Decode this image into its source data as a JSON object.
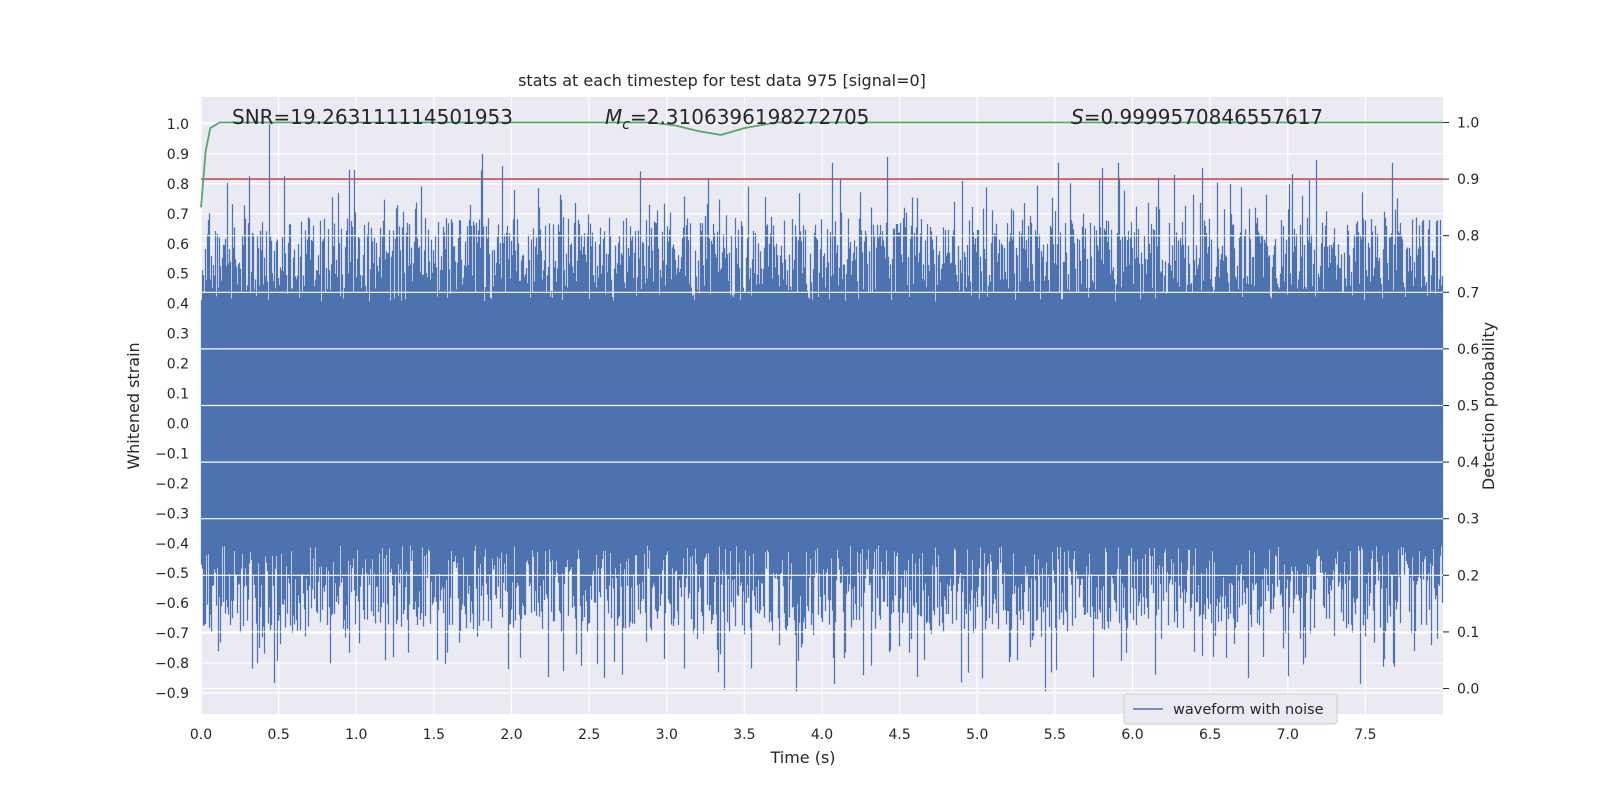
{
  "chart_data": {
    "type": "line",
    "title": "stats at each timestep for test data 975 [signal=0]",
    "xlabel": "Time (s)",
    "ylabel_left": "Whitened strain",
    "ylabel_right": "Detection probability",
    "xlim": [
      0.0,
      8.0
    ],
    "ylim_left": [
      -0.97,
      1.09
    ],
    "ylim_right": [
      -0.045,
      1.045
    ],
    "x_ticks": [
      0.0,
      0.5,
      1.0,
      1.5,
      2.0,
      2.5,
      3.0,
      3.5,
      4.0,
      4.5,
      5.0,
      5.5,
      6.0,
      6.5,
      7.0,
      7.5
    ],
    "x_tick_labels": [
      "0.0",
      "0.5",
      "1.0",
      "1.5",
      "2.0",
      "2.5",
      "3.0",
      "3.5",
      "4.0",
      "4.5",
      "5.0",
      "5.5",
      "6.0",
      "6.5",
      "7.0",
      "7.5"
    ],
    "y_left_ticks": [
      1.0,
      0.9,
      0.8,
      0.7,
      0.6,
      0.5,
      0.4,
      0.3,
      0.2,
      0.1,
      0.0,
      -0.1,
      -0.2,
      -0.3,
      -0.4,
      -0.5,
      -0.6,
      -0.7,
      -0.8,
      -0.9
    ],
    "y_left_tick_labels": [
      "1.0",
      "0.9",
      "0.8",
      "0.7",
      "0.6",
      "0.5",
      "0.4",
      "0.3",
      "0.2",
      "0.1",
      "0.0",
      "−0.1",
      "−0.2",
      "−0.3",
      "−0.4",
      "−0.5",
      "−0.6",
      "−0.7",
      "−0.8",
      "−0.9"
    ],
    "y_right_ticks": [
      1.0,
      0.9,
      0.8,
      0.7,
      0.6,
      0.5,
      0.4,
      0.3,
      0.2,
      0.1,
      0.0
    ],
    "y_right_tick_labels": [
      "1.0",
      "0.9",
      "0.8",
      "0.7",
      "0.6",
      "0.5",
      "0.4",
      "0.3",
      "0.2",
      "0.1",
      "0.0"
    ],
    "annotations": {
      "snr": "SNR=19.263111114501953",
      "mc_symbol": "M",
      "mc_sub": "c",
      "mc_value": "=2.3106396198272705",
      "s_symbol": "S",
      "s_value": "=0.9999570846557617"
    },
    "threshold": {
      "axis": "right",
      "value": 0.9,
      "color": "#c44e52"
    },
    "series": [
      {
        "name": "waveform with noise",
        "axis": "left",
        "color": "#4c72b0",
        "kind": "noise_envelope",
        "sample_rate": 2048,
        "duration": 8.0,
        "core_amplitude": 0.25,
        "peaks": [
          {
            "x": 0.44,
            "y": 1.0
          },
          {
            "x": 1.81,
            "y": 0.9
          },
          {
            "x": 3.27,
            "y": 0.82
          },
          {
            "x": 4.07,
            "y": 0.87
          },
          {
            "x": 4.42,
            "y": 0.89
          },
          {
            "x": 5.92,
            "y": 0.82
          },
          {
            "x": 6.27,
            "y": 0.83
          },
          {
            "x": 7.19,
            "y": 0.88
          },
          {
            "x": 7.68,
            "y": 0.87
          },
          {
            "x": 4.08,
            "y": -0.87
          },
          {
            "x": 6.75,
            "y": -0.85
          },
          {
            "x": 4.27,
            "y": -0.84
          },
          {
            "x": 1.98,
            "y": -0.82
          },
          {
            "x": 2.45,
            "y": -0.81
          },
          {
            "x": 0.83,
            "y": -0.8
          }
        ]
      },
      {
        "name": "detection probability",
        "axis": "right",
        "color": "#55a868",
        "x": [
          0.0,
          0.03,
          0.06,
          0.12,
          0.5,
          2.0,
          2.9,
          3.05,
          3.2,
          3.35,
          3.5,
          3.7,
          5.0,
          8.0
        ],
        "y": [
          0.85,
          0.95,
          0.99,
          1.0,
          1.0,
          1.0,
          1.0,
          0.995,
          0.985,
          0.978,
          0.99,
          1.0,
          1.0,
          1.0
        ]
      }
    ],
    "legend": {
      "placement": "bottom-right",
      "entries": [
        "waveform with noise"
      ]
    }
  }
}
